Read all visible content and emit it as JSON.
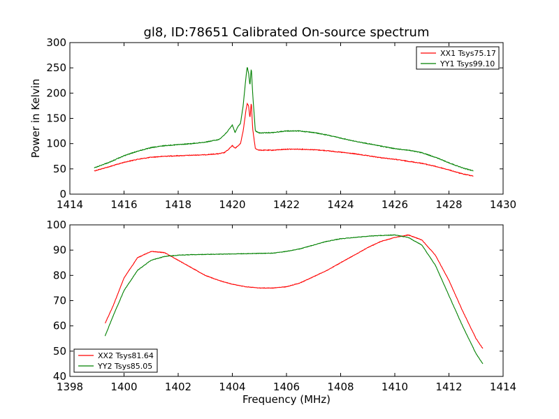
{
  "figure_title": "gl8, ID:78651 Calibrated On-source spectrum",
  "chart_data": [
    {
      "type": "line",
      "title": "gl8, ID:78651 Calibrated On-source spectrum",
      "xlabel": "",
      "ylabel": "Power in Kelvin",
      "xlim": [
        1414,
        1430
      ],
      "ylim": [
        0,
        300
      ],
      "xticks": [
        1414,
        1416,
        1418,
        1420,
        1422,
        1424,
        1426,
        1428,
        1430
      ],
      "yticks": [
        0,
        50,
        100,
        150,
        200,
        250,
        300
      ],
      "legend_position": "top-right",
      "grid": false,
      "series": [
        {
          "name": "XX1 Tsys75.17",
          "color": "#ff0000",
          "x": [
            1414.9,
            1415.5,
            1416.0,
            1416.5,
            1417.0,
            1417.5,
            1418.0,
            1418.5,
            1419.0,
            1419.5,
            1419.7,
            1419.85,
            1420.0,
            1420.1,
            1420.2,
            1420.3,
            1420.4,
            1420.5,
            1420.55,
            1420.6,
            1420.65,
            1420.7,
            1420.75,
            1420.85,
            1421.0,
            1421.5,
            1422.0,
            1422.5,
            1423.0,
            1423.5,
            1424.0,
            1424.5,
            1425.0,
            1425.5,
            1426.0,
            1426.5,
            1427.0,
            1427.5,
            1428.0,
            1428.5,
            1428.9
          ],
          "values": [
            46,
            55,
            63,
            69,
            73,
            75,
            76,
            77,
            78,
            80,
            82,
            88,
            96,
            91,
            95,
            100,
            125,
            165,
            180,
            175,
            150,
            182,
            130,
            90,
            87,
            87,
            89,
            89,
            88,
            86,
            83,
            80,
            76,
            72,
            69,
            65,
            61,
            55,
            48,
            40,
            36
          ]
        },
        {
          "name": "YY1 Tsys99.10",
          "color": "#008000",
          "x": [
            1414.9,
            1415.5,
            1416.0,
            1416.5,
            1417.0,
            1417.5,
            1418.0,
            1418.5,
            1419.0,
            1419.5,
            1419.7,
            1419.85,
            1420.0,
            1420.1,
            1420.2,
            1420.3,
            1420.4,
            1420.5,
            1420.55,
            1420.6,
            1420.65,
            1420.7,
            1420.75,
            1420.85,
            1421.0,
            1421.5,
            1422.0,
            1422.5,
            1423.0,
            1423.5,
            1424.0,
            1424.5,
            1425.0,
            1425.5,
            1426.0,
            1426.5,
            1427.0,
            1427.5,
            1428.0,
            1428.5,
            1428.9
          ],
          "values": [
            52,
            64,
            76,
            85,
            92,
            96,
            98,
            100,
            103,
            108,
            117,
            126,
            137,
            122,
            133,
            140,
            175,
            230,
            252,
            240,
            215,
            250,
            200,
            125,
            121,
            122,
            125,
            125,
            122,
            117,
            111,
            105,
            100,
            95,
            90,
            87,
            82,
            73,
            62,
            52,
            46
          ]
        }
      ]
    },
    {
      "type": "line",
      "title": "",
      "xlabel": "Frequency (MHz)",
      "ylabel": "",
      "xlim": [
        1398,
        1414
      ],
      "ylim": [
        40,
        100
      ],
      "xticks": [
        1398,
        1400,
        1402,
        1404,
        1406,
        1408,
        1410,
        1412,
        1414
      ],
      "yticks": [
        40,
        50,
        60,
        70,
        80,
        90,
        100
      ],
      "legend_position": "bottom-left",
      "grid": false,
      "series": [
        {
          "name": "XX2 Tsys81.64",
          "color": "#ff0000",
          "x": [
            1399.3,
            1399.6,
            1400.0,
            1400.5,
            1401.0,
            1401.5,
            1402.0,
            1402.5,
            1403.0,
            1403.5,
            1404.0,
            1404.5,
            1405.0,
            1405.5,
            1406.0,
            1406.5,
            1407.0,
            1407.5,
            1408.0,
            1408.5,
            1409.0,
            1409.5,
            1410.0,
            1410.5,
            1411.0,
            1411.5,
            1412.0,
            1412.5,
            1413.0,
            1413.25
          ],
          "values": [
            61,
            68,
            79,
            87,
            89.5,
            89,
            86,
            83,
            80,
            78,
            76.5,
            75.5,
            75,
            75,
            75.5,
            77,
            79.5,
            82,
            85,
            88,
            91,
            93.5,
            95,
            96,
            94,
            88,
            78,
            66,
            55,
            51
          ]
        },
        {
          "name": "YY2 Tsys85.05",
          "color": "#008000",
          "x": [
            1399.3,
            1399.6,
            1400.0,
            1400.5,
            1401.0,
            1401.5,
            1402.0,
            1402.5,
            1403.0,
            1403.5,
            1404.0,
            1404.5,
            1405.0,
            1405.5,
            1406.0,
            1406.5,
            1407.0,
            1407.5,
            1408.0,
            1408.5,
            1409.0,
            1409.5,
            1410.0,
            1410.5,
            1411.0,
            1411.5,
            1412.0,
            1412.5,
            1413.0,
            1413.25
          ],
          "values": [
            56,
            64,
            74,
            82,
            86,
            87.5,
            88,
            88.2,
            88.3,
            88.4,
            88.5,
            88.6,
            88.7,
            88.8,
            89.5,
            90.5,
            92,
            93.5,
            94.5,
            95,
            95.5,
            95.8,
            96,
            95,
            92,
            84,
            72,
            60,
            49,
            45
          ]
        }
      ]
    }
  ]
}
